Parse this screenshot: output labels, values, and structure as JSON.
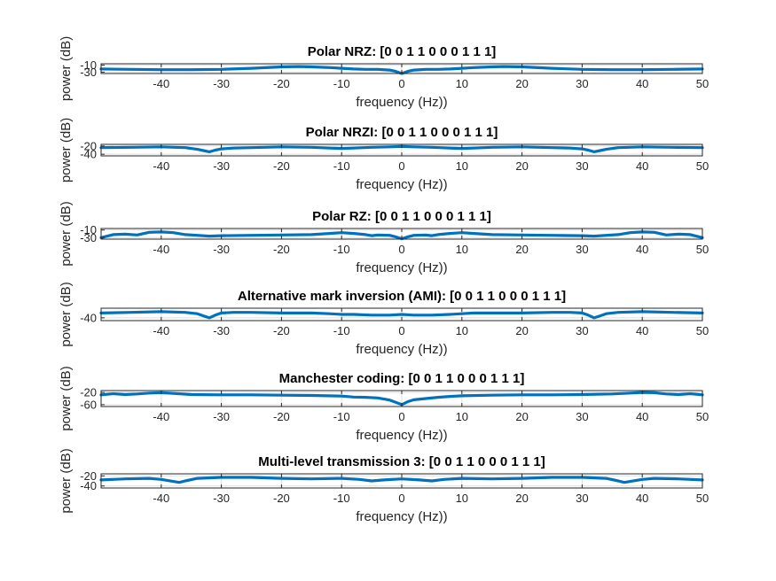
{
  "chart_data": [
    {
      "type": "line",
      "title": "Polar NRZ: [0  0  1  1  0  0  0  1  1  1]",
      "xlabel": "frequency (Hz))",
      "ylabel": "power (dB)",
      "xlim": [
        -50,
        50
      ],
      "ylim": [
        -34,
        -6
      ],
      "xticks": [
        -40,
        -30,
        -20,
        -10,
        0,
        10,
        20,
        30,
        40,
        50
      ],
      "yticks": [
        -10,
        -30
      ],
      "grid": true,
      "series": [
        {
          "x": [
            -50,
            -45,
            -40,
            -35,
            -30,
            -25,
            -20,
            -17,
            -15,
            -12,
            -10,
            -8,
            -6,
            -4,
            -2,
            -1,
            0,
            1,
            2,
            4,
            6,
            8,
            10,
            12,
            15,
            17,
            20,
            25,
            30,
            35,
            40,
            45,
            50
          ],
          "y": [
            -21,
            -22,
            -23,
            -23,
            -22,
            -19,
            -15,
            -14,
            -15,
            -17,
            -19,
            -21,
            -22,
            -22,
            -24,
            -28,
            -34,
            -28,
            -24,
            -22,
            -22,
            -21,
            -19,
            -17,
            -15,
            -14,
            -15,
            -19,
            -22,
            -23,
            -23,
            -22,
            -21
          ]
        }
      ]
    },
    {
      "type": "line",
      "title": "Polar NRZI: [0  0  1  1  0  0  0  1  1  1]",
      "xlabel": "frequency (Hz))",
      "ylabel": "power (dB)",
      "xlim": [
        -50,
        50
      ],
      "ylim": [
        -44,
        -16
      ],
      "xticks": [
        -40,
        -30,
        -20,
        -10,
        0,
        10,
        20,
        30,
        40,
        50
      ],
      "yticks": [
        -20,
        -40
      ],
      "grid": true,
      "series": [
        {
          "x": [
            -50,
            -45,
            -40,
            -36,
            -34,
            -33,
            -32,
            -31,
            -30,
            -28,
            -25,
            -20,
            -15,
            -12,
            -10,
            -8,
            -5,
            -2,
            0,
            2,
            5,
            8,
            10,
            12,
            15,
            20,
            25,
            28,
            30,
            31,
            32,
            33,
            34,
            36,
            40,
            45,
            50
          ],
          "y": [
            -24,
            -23,
            -22,
            -24,
            -28,
            -31,
            -34,
            -30,
            -27,
            -25,
            -24,
            -22,
            -23,
            -25,
            -26,
            -25,
            -23,
            -22,
            -21,
            -22,
            -23,
            -25,
            -26,
            -25,
            -23,
            -22,
            -24,
            -25,
            -27,
            -30,
            -34,
            -31,
            -28,
            -24,
            -22,
            -23,
            -24
          ]
        }
      ]
    },
    {
      "type": "line",
      "title": "Polar RZ: [0  0  1  1  0  0  0  1  1  1]",
      "xlabel": "frequency (Hz))",
      "ylabel": "power (dB)",
      "xlim": [
        -50,
        50
      ],
      "ylim": [
        -34,
        -6
      ],
      "xticks": [
        -40,
        -30,
        -20,
        -10,
        0,
        10,
        20,
        30,
        40,
        50
      ],
      "yticks": [
        -10,
        -30
      ],
      "grid": true,
      "series": [
        {
          "x": [
            -50,
            -48,
            -46,
            -44,
            -42,
            -40,
            -38,
            -36,
            -34,
            -32,
            -30,
            -25,
            -20,
            -15,
            -12,
            -10,
            -8,
            -6,
            -5,
            -4,
            -2,
            -1,
            0,
            1,
            2,
            4,
            5,
            6,
            8,
            10,
            12,
            15,
            20,
            25,
            30,
            32,
            34,
            36,
            38,
            40,
            42,
            44,
            46,
            48,
            50
          ],
          "y": [
            -30,
            -22,
            -21,
            -23,
            -16,
            -15,
            -17,
            -22,
            -24,
            -26,
            -25,
            -24,
            -23,
            -22,
            -19,
            -17,
            -19,
            -22,
            -25,
            -23,
            -24,
            -28,
            -33,
            -28,
            -24,
            -23,
            -25,
            -22,
            -19,
            -17,
            -19,
            -22,
            -23,
            -24,
            -25,
            -26,
            -24,
            -22,
            -17,
            -15,
            -16,
            -23,
            -21,
            -22,
            -30
          ]
        }
      ]
    },
    {
      "type": "line",
      "title": "Alternative mark inversion (AMI): [0  0  1  1  0  0  0  1  1  1]",
      "xlabel": "frequency (Hz))",
      "ylabel": "power (dB)",
      "xlim": [
        -50,
        50
      ],
      "ylim": [
        -44,
        -26
      ],
      "xticks": [
        -40,
        -30,
        -20,
        -10,
        0,
        10,
        20,
        30,
        40,
        50
      ],
      "yticks": [
        -40
      ],
      "grid": true,
      "series": [
        {
          "x": [
            -50,
            -45,
            -40,
            -36,
            -34,
            -33,
            -32,
            -31,
            -30,
            -28,
            -25,
            -20,
            -15,
            -12,
            -10,
            -8,
            -5,
            -2,
            0,
            2,
            5,
            8,
            10,
            12,
            15,
            20,
            25,
            28,
            30,
            31,
            32,
            33,
            34,
            36,
            40,
            45,
            50
          ],
          "y": [
            -33,
            -32,
            -31,
            -32,
            -34,
            -37,
            -40,
            -36,
            -33,
            -32,
            -32,
            -33,
            -33,
            -34,
            -35,
            -35,
            -36,
            -36,
            -35,
            -36,
            -36,
            -35,
            -34,
            -33,
            -33,
            -33,
            -32,
            -32,
            -33,
            -36,
            -40,
            -37,
            -34,
            -32,
            -31,
            -32,
            -33
          ]
        }
      ]
    },
    {
      "type": "line",
      "title": "Manchester coding: [0  0  1  1  0  0  0  1  1  1]",
      "xlabel": "frequency (Hz))",
      "ylabel": "power (dB)",
      "xlim": [
        -50,
        50
      ],
      "ylim": [
        -66,
        -14
      ],
      "xticks": [
        -40,
        -30,
        -20,
        -10,
        0,
        10,
        20,
        30,
        40,
        50
      ],
      "yticks": [
        -20,
        -60
      ],
      "grid": true,
      "series": [
        {
          "x": [
            -50,
            -48,
            -46,
            -44,
            -42,
            -40,
            -38,
            -35,
            -30,
            -25,
            -20,
            -15,
            -10,
            -8,
            -6,
            -4,
            -2,
            -1,
            0,
            1,
            2,
            4,
            6,
            8,
            10,
            15,
            20,
            25,
            30,
            35,
            38,
            40,
            42,
            44,
            46,
            48,
            50
          ],
          "y": [
            -28,
            -24,
            -27,
            -25,
            -22,
            -21,
            -23,
            -27,
            -28,
            -28,
            -29,
            -30,
            -32,
            -35,
            -36,
            -38,
            -45,
            -52,
            -60,
            -50,
            -44,
            -40,
            -36,
            -33,
            -31,
            -29,
            -28,
            -28,
            -27,
            -25,
            -22,
            -20,
            -21,
            -25,
            -27,
            -24,
            -28
          ]
        }
      ]
    },
    {
      "type": "line",
      "title": "Multi-level transmission 3: [0  0  1  1  0  0  0  1  1  1]",
      "xlabel": "frequency (Hz))",
      "ylabel": "power (dB)",
      "xlim": [
        -50,
        50
      ],
      "ylim": [
        -44,
        -16
      ],
      "xticks": [
        -40,
        -30,
        -20,
        -10,
        0,
        10,
        20,
        30,
        40,
        50
      ],
      "yticks": [
        -20,
        -40
      ],
      "grid": true,
      "series": [
        {
          "x": [
            -50,
            -46,
            -42,
            -40,
            -38,
            -37,
            -36,
            -34,
            -30,
            -25,
            -20,
            -15,
            -10,
            -7,
            -5,
            -3,
            0,
            3,
            5,
            7,
            10,
            15,
            20,
            25,
            30,
            34,
            36,
            37,
            38,
            40,
            42,
            46,
            50
          ],
          "y": [
            -28,
            -26,
            -25,
            -27,
            -31,
            -33,
            -30,
            -25,
            -23,
            -23,
            -25,
            -26,
            -25,
            -27,
            -30,
            -28,
            -26,
            -28,
            -30,
            -27,
            -25,
            -26,
            -25,
            -23,
            -23,
            -25,
            -30,
            -33,
            -31,
            -27,
            -25,
            -26,
            -28
          ]
        }
      ]
    }
  ]
}
